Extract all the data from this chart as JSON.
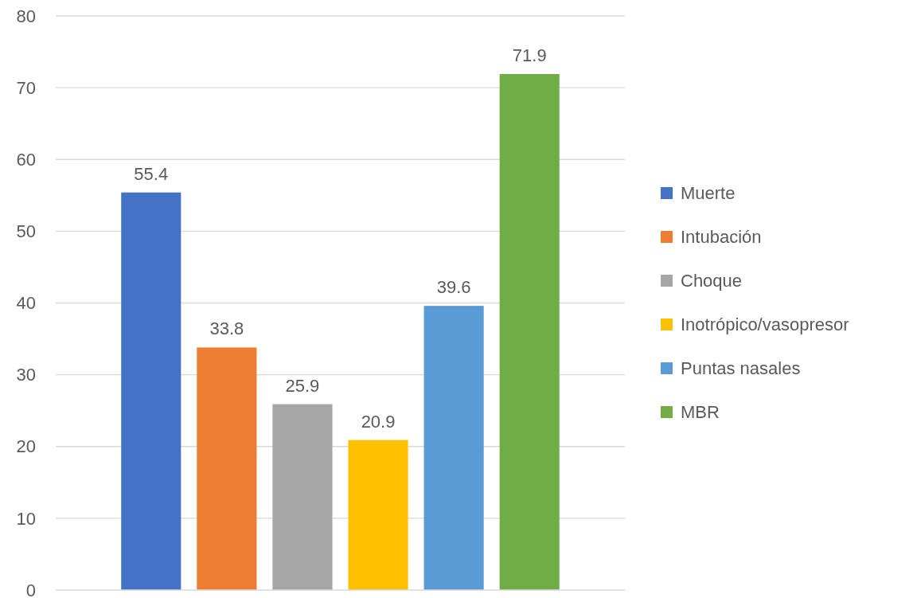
{
  "chart_data": {
    "type": "bar",
    "categories": [
      null
    ],
    "series": [
      {
        "name": "Muerte",
        "color": "#4472c4",
        "values": [
          55.4
        ]
      },
      {
        "name": "Intubación",
        "color": "#ed7d31",
        "values": [
          33.8
        ]
      },
      {
        "name": "Choque",
        "color": "#a5a5a5",
        "values": [
          25.9
        ]
      },
      {
        "name": "Inotrópico/vasopresor",
        "color": "#ffc000",
        "values": [
          20.9
        ]
      },
      {
        "name": "Puntas nasales",
        "color": "#5b9bd5",
        "values": [
          39.6
        ]
      },
      {
        "name": "MBR",
        "color": "#70ad47",
        "values": [
          71.9
        ]
      }
    ],
    "ylim": [
      0,
      80
    ],
    "yticks": [
      0,
      10,
      20,
      30,
      40,
      50,
      60,
      70,
      80
    ],
    "grid": "y",
    "data_labels": true,
    "legend": "right"
  }
}
